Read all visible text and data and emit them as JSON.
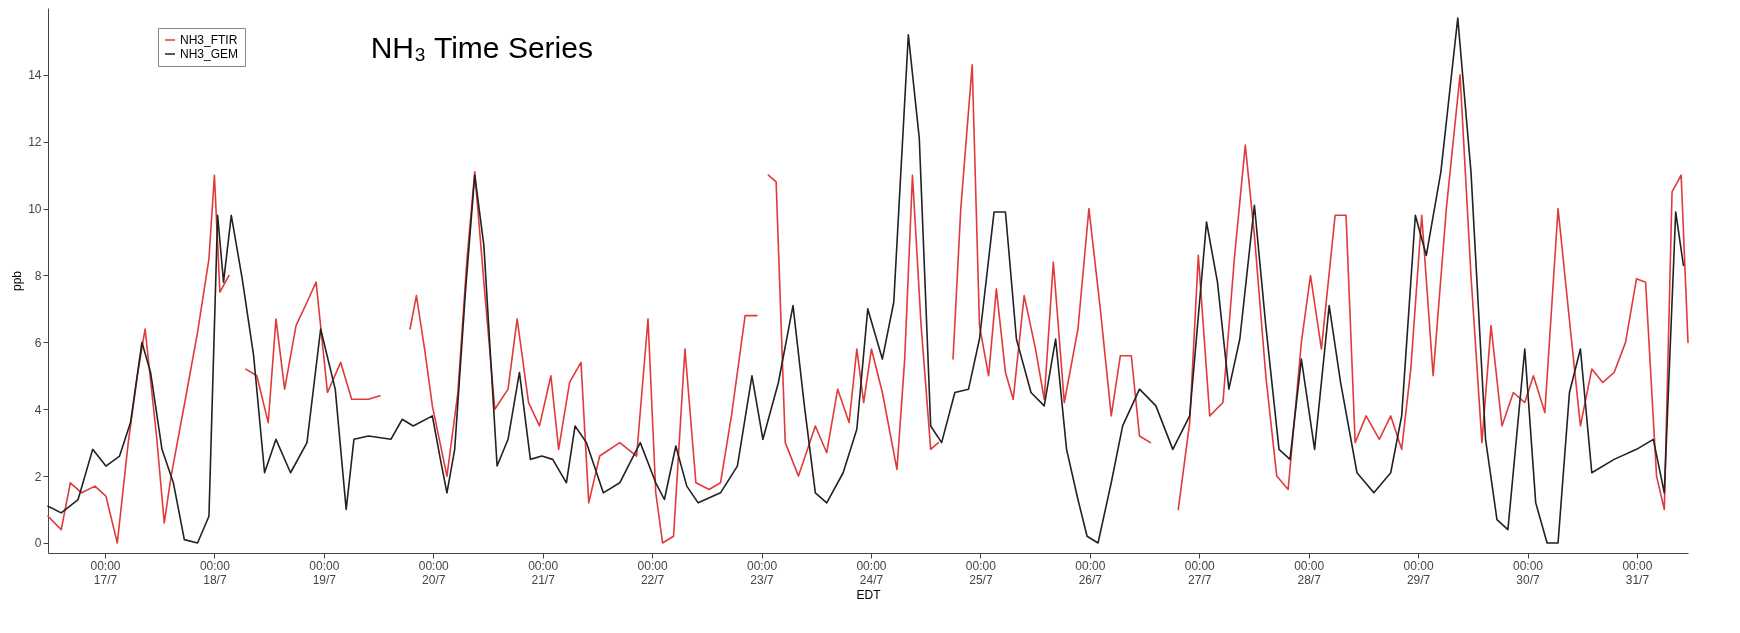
{
  "chart_data": {
    "type": "line",
    "title": "NH₃ Time Series",
    "xlabel": "EDT",
    "ylabel": "ppb",
    "xlim": [
      "--07-16T11:30",
      "--07-31T11:12"
    ],
    "ylim": [
      -0.3,
      16
    ],
    "xticks": [
      {
        "value": "--07-17T00:00",
        "label": "00:00\n17/7"
      },
      {
        "value": "--07-18T00:00",
        "label": "00:00\n18/7"
      },
      {
        "value": "--07-19T00:00",
        "label": "00:00\n19/7"
      },
      {
        "value": "--07-20T00:00",
        "label": "00:00\n20/7"
      },
      {
        "value": "--07-21T00:00",
        "label": "00:00\n21/7"
      },
      {
        "value": "--07-22T00:00",
        "label": "00:00\n22/7"
      },
      {
        "value": "--07-23T00:00",
        "label": "00:00\n23/7"
      },
      {
        "value": "--07-24T00:00",
        "label": "00:00\n24/7"
      },
      {
        "value": "--07-25T00:00",
        "label": "00:00\n25/7"
      },
      {
        "value": "--07-26T00:00",
        "label": "00:00\n26/7"
      },
      {
        "value": "--07-27T00:00",
        "label": "00:00\n27/7"
      },
      {
        "value": "--07-28T00:00",
        "label": "00:00\n28/7"
      },
      {
        "value": "--07-29T00:00",
        "label": "00:00\n29/7"
      },
      {
        "value": "--07-30T00:00",
        "label": "00:00\n30/7"
      },
      {
        "value": "--07-31T00:00",
        "label": "00:00\n31/7"
      }
    ],
    "yticks": [
      0,
      2,
      4,
      6,
      8,
      10,
      12,
      14
    ],
    "grid": false,
    "legend": "top left",
    "marker": "none",
    "line_style": "solid",
    "series": [
      {
        "name": "NH3_FTIR",
        "color": "#e03a3a",
        "x": [
          "--07-16T11:30",
          "--07-16T14:24",
          "--07-16T16:24",
          "--07-16T18:54",
          "--07-16T21:48",
          "--07-17T00:12",
          "--07-17T02:42",
          "--07-17T05:06",
          "--07-17T07:06",
          "--07-17T08:48",
          "--07-17T11:18",
          "--07-17T13:00",
          "--07-17T14:30",
          "--07-17T17:54",
          "--07-17T20:18",
          "--07-17T22:48",
          "--07-18T00:00",
          "--07-18T01:12",
          "--07-18T03:12",
          "--07-18T05:00",
          "--07-18T06:54",
          "--07-18T09:18",
          "--07-18T11:48",
          "--07-18T13:30",
          "--07-18T15:24",
          "--07-18T17:54",
          "--07-18T20:18",
          "--07-18T22:18",
          "--07-19T00:48",
          "--07-19T03:42",
          "--07-19T06:06",
          "--07-19T09:48",
          "--07-19T12:18",
          "--07-19T15:00",
          "--07-19T18:54",
          "--07-19T20:18",
          "--07-19T22:06",
          "--07-19T23:48",
          "--07-20T03:00",
          "--07-20T05:24",
          "--07-20T07:24",
          "--07-20T09:06",
          "--07-20T11:06",
          "--07-20T13:30",
          "--07-20T16:24",
          "--07-20T18:24",
          "--07-20T20:54",
          "--07-20T23:18",
          "--07-21T01:48",
          "--07-21T03:30",
          "--07-21T05:54",
          "--07-21T08:24",
          "--07-21T10:06",
          "--07-21T12:30",
          "--07-21T16:54",
          "--07-21T20:36",
          "--07-21T23:06",
          "--07-22T00:48",
          "--07-22T02:18",
          "--07-22T04:42",
          "--07-22T07:12",
          "--07-22T09:36",
          "--07-22T12:30",
          "--07-22T15:00",
          "--07-22T17:24",
          "--07-22T20:24",
          "--07-22T23:00",
          "--07-23T00:18",
          "--07-23T01:30",
          "--07-23T03:12",
          "--07-23T05:12",
          "--07-23T08:06",
          "--07-23T11:48",
          "--07-23T14:18",
          "--07-23T16:42",
          "--07-23T19:12",
          "--07-23T20:54",
          "--07-23T22:24",
          "--07-24T00:06",
          "--07-24T02:30",
          "--07-24T05:42",
          "--07-24T07:24",
          "--07-24T09:06",
          "--07-24T11:00",
          "--07-24T13:06",
          "--07-24T14:48",
          "--07-24T16:30",
          "--07-24T18:00",
          "--07-24T19:42",
          "--07-24T22:12",
          "--07-24T23:48",
          "--07-25T01:48",
          "--07-25T03:30",
          "--07-25T05:30",
          "--07-25T07:12",
          "--07-25T09:36",
          "--07-25T12:06",
          "--07-25T14:00",
          "--07-25T16:00",
          "--07-25T18:24",
          "--07-25T21:24",
          "--07-25T23:48",
          "--07-26T02:18",
          "--07-26T04:42",
          "--07-26T06:42",
          "--07-26T09:06",
          "--07-26T10:54",
          "--07-26T13:18",
          "--07-26T16:00",
          "--07-26T19:24",
          "--07-26T21:54",
          "--07-26T23:48",
          "--07-27T02:18",
          "--07-27T05:12",
          "--07-27T07:42",
          "--07-27T10:06",
          "--07-27T12:06",
          "--07-27T14:36",
          "--07-27T17:00",
          "--07-27T19:30",
          "--07-27T22:24",
          "--07-28T00:24",
          "--07-28T02:48",
          "--07-28T05:48",
          "--07-28T08:12",
          "--07-28T10:12",
          "--07-28T12:36",
          "--07-28T15:30",
          "--07-28T18:00",
          "--07-28T20:24",
          "--07-28T22:24",
          "--07-29T00:48",
          "--07-29T03:18",
          "--07-29T06:12",
          "--07-29T09:12",
          "--07-29T11:36",
          "--07-29T14:00",
          "--07-29T16:00",
          "--07-29T18:24",
          "--07-29T20:54",
          "--07-29T23:24",
          "--07-30T01:18",
          "--07-30T03:48",
          "--07-30T06:42",
          "--07-30T09:42",
          "--07-30T11:36",
          "--07-30T14:06",
          "--07-30T16:30",
          "--07-30T19:00",
          "--07-30T21:30",
          "--07-30T23:54",
          "--07-31T01:54",
          "--07-31T04:18",
          "--07-31T06:00",
          "--07-31T07:42",
          "--07-31T09:42",
          "--07-31T11:12"
        ],
        "values": [
          0.8,
          0.4,
          1.8,
          1.5,
          1.7,
          1.4,
          0.0,
          3.0,
          5.0,
          6.4,
          3.2,
          0.6,
          2.0,
          4.5,
          6.3,
          8.5,
          11.0,
          7.5,
          8.0,
          null,
          5.2,
          5.0,
          3.6,
          6.7,
          4.6,
          6.5,
          7.2,
          7.8,
          4.5,
          5.4,
          4.3,
          4.3,
          4.4,
          null,
          6.4,
          7.4,
          5.8,
          4.1,
          2.0,
          4.5,
          8.5,
          11.1,
          7.8,
          4.0,
          4.6,
          6.7,
          4.2,
          3.5,
          5.0,
          2.8,
          4.8,
          5.4,
          1.2,
          2.6,
          3.0,
          2.6,
          6.7,
          1.5,
          0.0,
          0.2,
          5.8,
          1.8,
          1.6,
          1.8,
          3.8,
          6.8,
          6.8,
          null,
          11.0,
          10.8,
          3.0,
          2.0,
          3.5,
          2.7,
          4.6,
          3.6,
          5.8,
          4.2,
          5.8,
          4.5,
          2.2,
          5.5,
          11.0,
          6.5,
          2.8,
          3.0,
          null,
          5.5,
          10.0,
          14.3,
          6.5,
          5.0,
          7.6,
          5.1,
          4.3,
          7.4,
          5.8,
          4.3,
          8.4,
          4.2,
          6.4,
          10.0,
          7.0,
          3.8,
          5.6,
          5.6,
          3.2,
          3.0,
          null,
          1.0,
          3.6,
          8.6,
          3.8,
          4.2,
          8.5,
          11.9,
          9.2,
          5.0,
          2.0,
          1.6,
          6.0,
          8.0,
          5.8,
          9.8,
          9.8,
          3.0,
          3.8,
          3.1,
          3.8,
          2.8,
          5.2,
          9.8,
          5.0,
          10.0,
          14.0,
          8.0,
          3.0,
          6.5,
          3.5,
          4.5,
          4.2,
          5.0,
          3.9,
          10.0,
          6.0,
          3.5,
          5.2,
          4.8,
          5.1,
          6.0,
          7.9,
          7.8,
          2.0,
          1.0,
          10.5,
          11.0,
          6.0
        ]
      },
      {
        "name": "NH3_GEM",
        "color": "#222222",
        "x": [
          "--07-16T11:30",
          "--07-16T14:24",
          "--07-16T18:06",
          "--07-16T21:18",
          "--07-17T00:12",
          "--07-17T03:12",
          "--07-17T05:36",
          "--07-17T08:06",
          "--07-17T10:00",
          "--07-17T12:30",
          "--07-17T15:00",
          "--07-17T17:24",
          "--07-17T20:18",
          "--07-17T22:48",
          "--07-18T00:42",
          "--07-18T02:00",
          "--07-18T03:42",
          "--07-18T06:06",
          "--07-18T08:36",
          "--07-18T11:00",
          "--07-18T13:30",
          "--07-18T16:42",
          "--07-18T20:18",
          "--07-18T23:18",
          "--07-19T02:30",
          "--07-19T04:54",
          "--07-19T06:36",
          "--07-19T09:48",
          "--07-19T14:42",
          "--07-19T17:12",
          "--07-19T19:36",
          "--07-19T23:48",
          "--07-20T01:42",
          "--07-20T03:00",
          "--07-20T04:42",
          "--07-20T07:06",
          "--07-20T09:06",
          "--07-20T11:06",
          "--07-20T14:00",
          "--07-20T16:24",
          "--07-20T18:54",
          "--07-20T21:18",
          "--07-20T23:48",
          "--07-21T02:12",
          "--07-21T05:12",
          "--07-21T07:06",
          "--07-21T09:36",
          "--07-21T13:18",
          "--07-21T16:54",
          "--07-21T21:24",
          "--07-22T00:48",
          "--07-22T02:42",
          "--07-22T05:12",
          "--07-22T07:36",
          "--07-22T10:06",
          "--07-22T15:00",
          "--07-22T18:42",
          "--07-22T21:54",
          "--07-23T00:18",
          "--07-23T03:42",
          "--07-23T06:54",
          "--07-23T09:24",
          "--07-23T11:48",
          "--07-23T14:18",
          "--07-23T17:54",
          "--07-23T20:54",
          "--07-23T23:18",
          "--07-24T02:30",
          "--07-24T05:00",
          "--07-24T08:12",
          "--07-24T10:36",
          "--07-24T13:06",
          "--07-24T15:30",
          "--07-24T18:24",
          "--07-24T21:24",
          "--07-24T23:48",
          "--07-25T03:00",
          "--07-25T05:30",
          "--07-25T07:54",
          "--07-25T11:06",
          "--07-25T14:00",
          "--07-25T16:30",
          "--07-25T18:54",
          "--07-25T21:24",
          "--07-25T23:24",
          "--07-26T01:48",
          "--07-26T04:42",
          "--07-26T07:12",
          "--07-26T10:54",
          "--07-26T14:30",
          "--07-26T18:12",
          "--07-26T21:54",
          "--07-27T01:36",
          "--07-27T04:00",
          "--07-27T06:30",
          "--07-27T08:54",
          "--07-27T12:06",
          "--07-27T14:36",
          "--07-27T17:30",
          "--07-27T19:54",
          "--07-27T22:24",
          "--07-28T01:18",
          "--07-28T04:30",
          "--07-28T07:00",
          "--07-28T10:36",
          "--07-28T14:18",
          "--07-28T18:00",
          "--07-28T20:24",
          "--07-28T23:24",
          "--07-29T01:48",
          "--07-29T05:00",
          "--07-29T08:42",
          "--07-29T11:36",
          "--07-29T14:48",
          "--07-29T17:18",
          "--07-29T19:42",
          "--07-29T23:24",
          "--07-30T01:48",
          "--07-30T04:18",
          "--07-30T06:42",
          "--07-30T09:12",
          "--07-30T11:36",
          "--07-30T14:06",
          "--07-30T19:00",
          "--07-30T23:54",
          "--07-31T03:36",
          "--07-31T06:00",
          "--07-31T08:30",
          "--07-31T10:12"
        ],
        "values": [
          1.1,
          0.9,
          1.3,
          2.8,
          2.3,
          2.6,
          3.6,
          6.0,
          5.1,
          2.8,
          1.8,
          0.1,
          0,
          0.8,
          9.8,
          7.8,
          9.8,
          7.9,
          5.6,
          2.1,
          3.1,
          2.1,
          3.0,
          6.4,
          4.6,
          1.0,
          3.1,
          3.2,
          3.1,
          3.7,
          3.5,
          3.8,
          2.4,
          1.5,
          2.8,
          7.6,
          11.0,
          8.9,
          2.3,
          3.1,
          5.1,
          2.5,
          2.6,
          2.5,
          1.8,
          3.5,
          3.0,
          1.5,
          1.8,
          3.0,
          1.8,
          1.3,
          2.9,
          1.7,
          1.2,
          1.5,
          2.3,
          5.0,
          3.1,
          4.8,
          7.1,
          4.1,
          1.5,
          1.2,
          2.1,
          3.4,
          7.0,
          5.5,
          7.2,
          15.2,
          12.1,
          3.5,
          3.0,
          4.5,
          4.6,
          6.1,
          9.9,
          9.9,
          6.1,
          4.5,
          4.1,
          6.1,
          2.8,
          1.3,
          0.2,
          0,
          1.8,
          3.5,
          4.6,
          4.1,
          2.8,
          3.8,
          9.6,
          7.8,
          4.6,
          6.1,
          10.1,
          6.5,
          2.8,
          2.5,
          5.5,
          2.8,
          7.1,
          4.8,
          2.1,
          1.5,
          2.1,
          3.8,
          9.8,
          8.6,
          11.1,
          15.7,
          11.1,
          3.1,
          0.7,
          0.4,
          5.8,
          1.2,
          0,
          0,
          4.5,
          5.8,
          2.1,
          2.5,
          2.8,
          3.1,
          1.5,
          9.9,
          8.3
        ]
      }
    ]
  }
}
